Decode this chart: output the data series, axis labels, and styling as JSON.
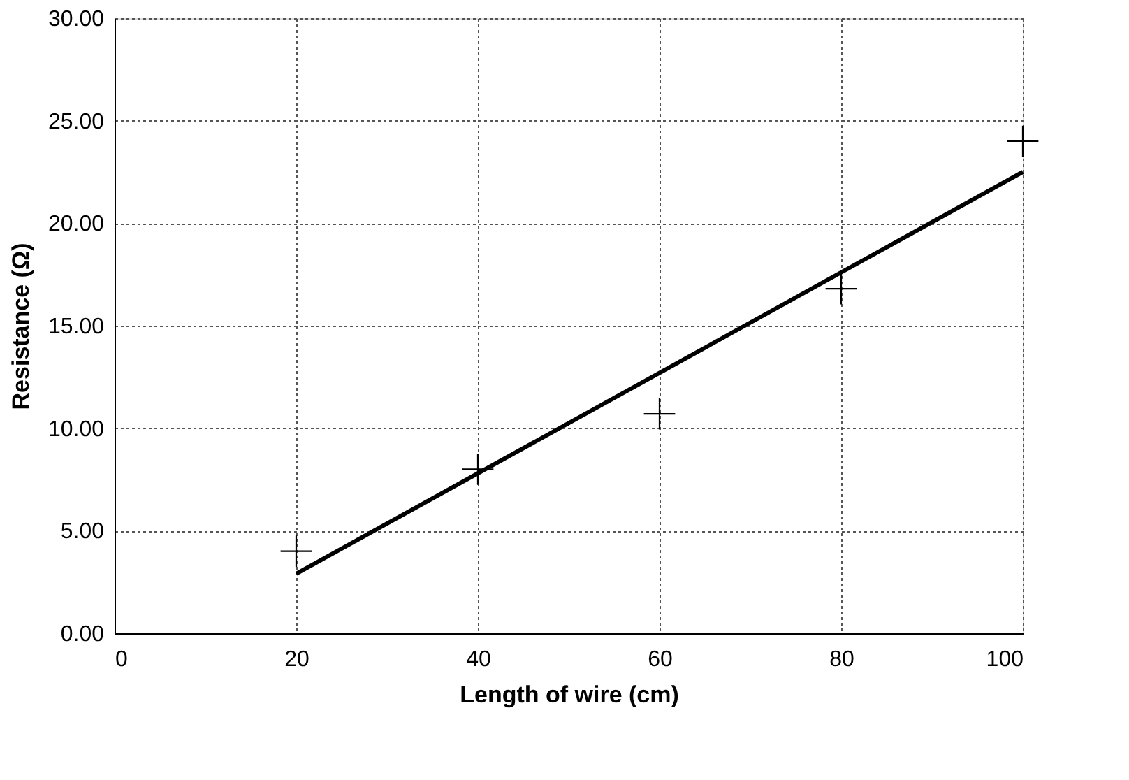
{
  "chart_data": {
    "type": "scatter",
    "xlabel": "Length of wire (cm)",
    "ylabel": "Resistance (Ω)",
    "xlim": [
      0,
      100
    ],
    "xticks": [
      0,
      20,
      40,
      60,
      80,
      100
    ],
    "ylim": [
      0,
      30
    ],
    "yticks": [
      {
        "value": 0,
        "label": "0.00"
      },
      {
        "value": 5,
        "label": "5.00"
      },
      {
        "value": 10,
        "label": "10.00"
      },
      {
        "value": 15,
        "label": "15.00"
      },
      {
        "value": 20,
        "label": "20.00"
      },
      {
        "value": 25,
        "label": "25.00"
      },
      {
        "value": 30,
        "label": "30.00"
      }
    ],
    "grid": true,
    "series": [
      {
        "marker": "cross",
        "color": "#000000",
        "x": [
          20,
          40,
          60,
          80,
          100
        ],
        "values": [
          4.0,
          8.0,
          10.7,
          16.8,
          24.0
        ]
      },
      {
        "type": "line",
        "line_style": "solid",
        "color": "#000000",
        "x": [
          20,
          100
        ],
        "values": [
          2.9,
          22.5
        ]
      }
    ]
  }
}
